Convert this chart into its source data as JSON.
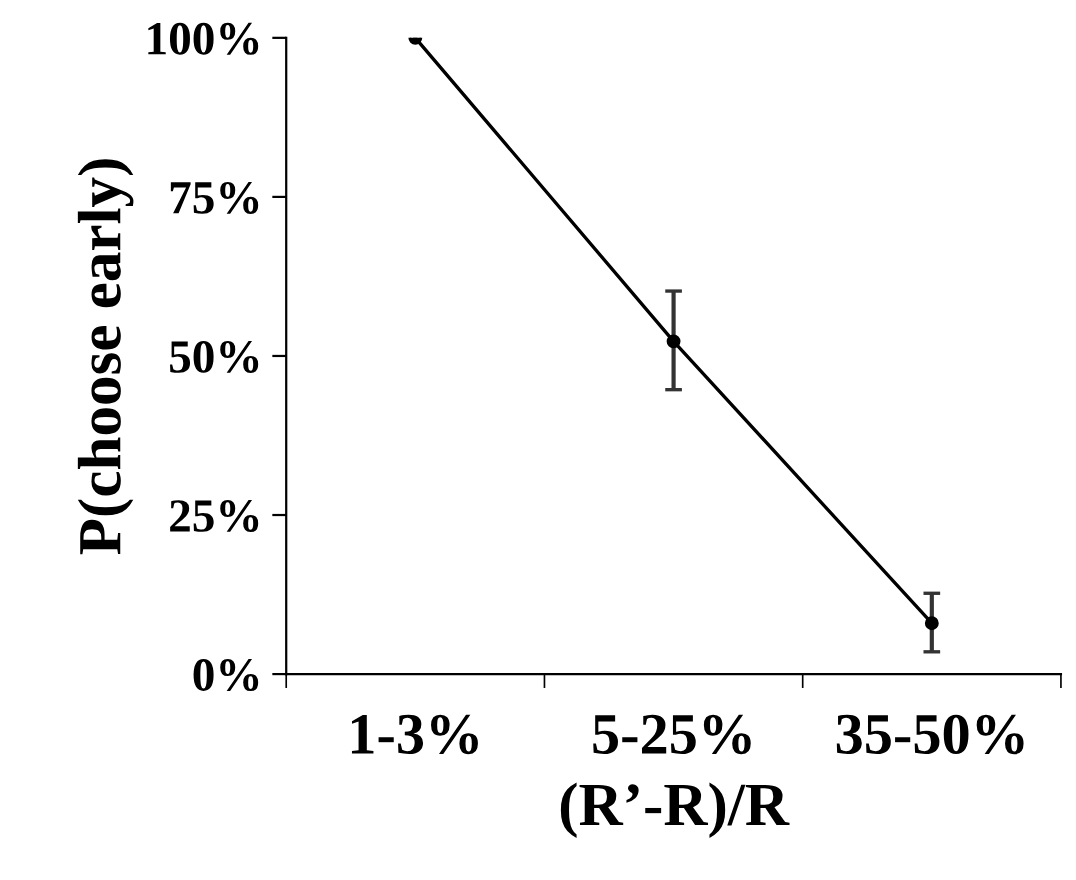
{
  "chart_data": {
    "type": "line",
    "xlabel": "(R’-R)/R",
    "ylabel": "P(choose early)",
    "categories": [
      "1-3%",
      "5-25%",
      "35-50%"
    ],
    "series": [
      {
        "color": "#000000",
        "values": [
          100,
          52.3,
          8.0
        ],
        "errors": [
          null,
          [
            44.7,
            60.2
          ],
          [
            3.5,
            12.7
          ]
        ]
      }
    ],
    "ylim": [
      0,
      100
    ],
    "yticks": [
      {
        "value": 0,
        "label": "0%"
      },
      {
        "value": 25,
        "label": "25%"
      },
      {
        "value": 50,
        "label": "50%"
      },
      {
        "value": 75,
        "label": "75%"
      },
      {
        "value": 100,
        "label": "100%"
      }
    ],
    "marker": "circle",
    "line_style": "solid",
    "grid": false,
    "legend": false
  }
}
